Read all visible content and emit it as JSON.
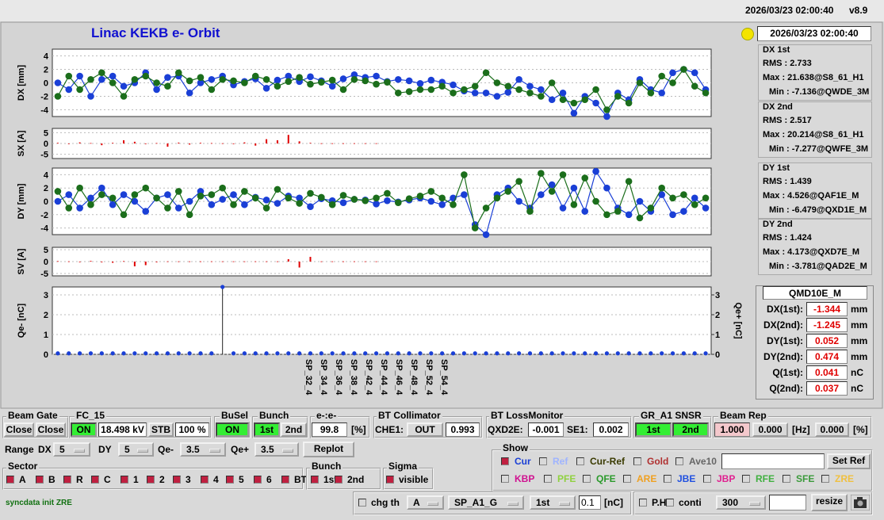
{
  "header": {
    "timestamp": "2026/03/23 02:00:40",
    "version": "v8.9"
  },
  "title": "Linac KEKB e- Orbit",
  "clock": "2026/03/23 02:00:40",
  "plots": [
    {
      "type": "line",
      "ylabel": "DX [mm]",
      "ylim": [
        -5,
        5
      ],
      "yticks": [
        4,
        2,
        0,
        -2,
        -4
      ],
      "series": [
        {
          "color": "#1a3fd6",
          "values": [
            0,
            -1,
            1,
            -2,
            0.5,
            1,
            -0.5,
            0,
            1.5,
            -1,
            0.8,
            1,
            -1.5,
            0,
            0.5,
            1,
            -0.3,
            0.2,
            0.6,
            -0.8,
            0.4,
            1,
            0.2,
            0.9,
            0.3,
            -0.5,
            0.6,
            1.2,
            0.8,
            1,
            0.2,
            0.5,
            0.3,
            -0.1,
            0.4,
            0.1,
            -0.3,
            -1.2,
            -1.5,
            -1.5,
            -2,
            -1.4,
            0.5,
            -0.5,
            -1,
            -2.5,
            -1.5,
            -4.5,
            -2,
            -3,
            -5,
            -1.5,
            -2.5,
            0.5,
            -1,
            -1.5,
            1.5,
            2,
            1.5,
            -1
          ]
        },
        {
          "color": "#1b6e1b",
          "values": [
            -2,
            1,
            -1,
            0.5,
            1.5,
            0,
            -2,
            0.5,
            1,
            0,
            -0.5,
            1.5,
            0.3,
            0.8,
            -1,
            0.5,
            0.3,
            0,
            1,
            0.5,
            -0.5,
            0.2,
            0.8,
            -0.2,
            0.1,
            0.4,
            -1,
            0.5,
            0.3,
            -0.2,
            0.1,
            -1.5,
            -1.3,
            -1,
            -1,
            -0.5,
            -1.5,
            -1,
            -0.5,
            1.5,
            0,
            -0.5,
            -1,
            -1.5,
            -2,
            0,
            -2.5,
            -3,
            -2.5,
            -1,
            -4,
            -2,
            -3,
            0,
            -1.5,
            1,
            0,
            2,
            -0.5,
            -1.5
          ]
        }
      ]
    },
    {
      "type": "bar",
      "ylabel": "SX [A]",
      "ylim": [
        -7,
        7
      ],
      "yticks": [
        5,
        0,
        -5
      ],
      "color": "#e00000",
      "values": [
        0.3,
        -0.2,
        0.5,
        0.2,
        -0.8,
        0.3,
        1.5,
        0.8,
        -0.3,
        0.2,
        -1.5,
        0.4,
        -0.5,
        0.3,
        0.2,
        0.1,
        -0.3,
        0.5,
        -1,
        2,
        1.5,
        4,
        1,
        0.3,
        0.1,
        0.1,
        0.1,
        0.1,
        0.1,
        0.1
      ]
    },
    {
      "type": "line",
      "ylabel": "DY [mm]",
      "ylim": [
        -5,
        5
      ],
      "yticks": [
        4,
        2,
        0,
        -2,
        -4
      ],
      "series": [
        {
          "color": "#1a3fd6",
          "values": [
            0,
            1,
            -1,
            0.5,
            2,
            -0.5,
            1,
            0,
            -1.5,
            0.5,
            1,
            -1,
            0,
            1.5,
            -0.5,
            0.3,
            1,
            -0.5,
            0.6,
            0.2,
            -0.3,
            0.8,
            0.5,
            -0.8,
            0.4,
            0.1,
            -0.2,
            0.3,
            0.2,
            -0.4,
            0.1,
            -0.1,
            0.2,
            0.5,
            0,
            -0.5,
            0.5,
            1,
            -3.5,
            -5,
            1,
            2,
            0,
            -1,
            1,
            2.5,
            -1,
            2,
            -1.5,
            4.5,
            2,
            -1,
            -2,
            0,
            -1.5,
            1,
            -2,
            -1.5,
            0.5,
            -1
          ]
        },
        {
          "color": "#1b6e1b",
          "values": [
            1.5,
            -1,
            2,
            -0.5,
            1,
            0.5,
            -2,
            1,
            2,
            0.5,
            -1,
            1.5,
            -2,
            0.8,
            1,
            2,
            -0.5,
            1.5,
            0.5,
            -1,
            1.8,
            0.5,
            -0.3,
            1.2,
            0.6,
            -0.5,
            0.9,
            0.3,
            0.1,
            0.5,
            1.2,
            -0.2,
            0.4,
            0.8,
            1.5,
            0.5,
            -0.5,
            4,
            -4,
            -1,
            0.5,
            1.5,
            3,
            -1.5,
            4.2,
            1.5,
            4,
            -0.5,
            3.5,
            0,
            -2,
            -1.5,
            3,
            -2.5,
            -1,
            2,
            0.5,
            1,
            -0.5,
            0.5
          ]
        }
      ]
    },
    {
      "type": "bar",
      "ylabel": "SV [A]",
      "ylim": [
        -6,
        6
      ],
      "yticks": [
        5,
        0,
        -5
      ],
      "color": "#e00000",
      "values": [
        0.2,
        0.1,
        -0.2,
        0.3,
        -0.3,
        -0.5,
        0.2,
        -2,
        -1.5,
        -0.3,
        0.1,
        0.1,
        0.1,
        0.1,
        0.1,
        0.1,
        0.1,
        0.1,
        0.1,
        0.1,
        0.1,
        1,
        -2.5,
        2,
        0.1,
        0.1,
        0.1,
        0.1,
        0.1,
        0.1
      ]
    },
    {
      "type": "scatter",
      "ylabel": "Qe- [nC]",
      "y2label": "Qe+ [nC]",
      "ylim": [
        0,
        3.4
      ],
      "yticks": [
        0,
        1,
        2,
        3
      ],
      "y2lim": [
        0,
        3.4
      ],
      "y2ticks": [
        0,
        1,
        2,
        3
      ],
      "color": "#1a3fd6",
      "values": [
        0.05,
        0.05,
        0.05,
        0.05,
        0.05,
        0.05,
        0.05,
        0.05,
        0.05,
        0.05,
        0.05,
        0.05,
        0.05,
        0.05,
        0.05,
        3.4,
        0.05,
        0.05,
        0.05,
        0.05,
        0.05,
        0.05,
        0.05,
        0.05,
        0.05,
        0.05,
        0.05,
        0.05,
        0.05,
        0.05,
        0.05,
        0.05,
        0.05,
        0.05,
        0.05,
        0.05,
        0.05,
        0.05,
        0.05,
        0.05,
        0.05,
        0.05,
        0.05,
        0.05,
        0.05,
        0.05,
        0.05,
        0.05,
        0.05,
        0.05,
        0.05,
        0.05,
        0.05,
        0.05,
        0.05,
        0.05,
        0.05,
        0.05,
        0.05,
        0.05
      ]
    }
  ],
  "element_labels": [
    "SP_32_4",
    "SP_34_4",
    "SP_36_4",
    "SP_38_4",
    "SP_42_4",
    "SP_44_4",
    "SP_46_4",
    "SP_48_4",
    "SP_52_4",
    "SP_54_4"
  ],
  "stats": [
    {
      "title": "DX 1st",
      "lines": [
        "RMS : 2.733",
        "Max : 21.638@S8_61_H1",
        "Min : -7.136@QWDE_3M"
      ]
    },
    {
      "title": "DX 2nd",
      "lines": [
        "RMS : 2.517",
        "Max : 20.214@S8_61_H1",
        "Min : -7.277@QWFE_3M"
      ]
    },
    {
      "title": "DY 1st",
      "lines": [
        "RMS : 1.439",
        "Max : 4.526@QAF1E_M",
        "Min : -6.479@QXD1E_M"
      ]
    },
    {
      "title": "DY 2nd",
      "lines": [
        "RMS : 1.424",
        "Max : 4.173@QXD7E_M",
        "Min : -3.781@QAD2E_M"
      ]
    }
  ],
  "monitor": {
    "title": "QMD10E_M",
    "rows": [
      {
        "label": "DX(1st):",
        "value": "-1.344",
        "unit": "mm"
      },
      {
        "label": "DX(2nd):",
        "value": "-1.245",
        "unit": "mm"
      },
      {
        "label": "DY(1st):",
        "value": "0.052",
        "unit": "mm"
      },
      {
        "label": "DY(2nd):",
        "value": "0.474",
        "unit": "mm"
      },
      {
        "label": "Q(1st):",
        "value": "0.041",
        "unit": "nC"
      },
      {
        "label": "Q(2nd):",
        "value": "0.037",
        "unit": "nC"
      }
    ]
  },
  "controls": {
    "beam_gate": {
      "label": "Beam Gate",
      "buttons": [
        "Close",
        "Close"
      ]
    },
    "fc": {
      "label": "FC_15",
      "state": "ON",
      "voltage": "18.498 kV",
      "stb": "STB",
      "percent": "100 %"
    },
    "busel": {
      "label": "BuSel",
      "state": "ON"
    },
    "bunch": {
      "label": "Bunch",
      "options": [
        "1st",
        "2nd"
      ]
    },
    "ratio": {
      "label": "e-:e-",
      "value": "99.8",
      "unit": "[%]"
    },
    "collimator": {
      "label": "BT Collimator",
      "name": "CHE1:",
      "state": "OUT",
      "value": "0.993"
    },
    "loss": {
      "label": "BT LossMonitor",
      "name1": "QXD2E:",
      "value1": "-0.001",
      "name2": "SE1:",
      "value2": "0.002"
    },
    "snsr": {
      "label": "GR_A1 SNSR",
      "options": [
        "1st",
        "2nd"
      ]
    },
    "rep": {
      "label": "Beam Rep",
      "value1": "1.000",
      "value2": "0.000",
      "unit1": "[Hz]",
      "value3": "0.000",
      "unit2": "[%]"
    },
    "range": {
      "label": "Range",
      "dx": "DX",
      "dx_value": "5",
      "dy": "DY",
      "dy_value": "5",
      "qe_minus": "Qe-",
      "qe_minus_value": "3.5",
      "qe_plus": "Qe+",
      "qe_plus_value": "3.5",
      "replot": "Replot"
    },
    "sector": {
      "label": "Sector",
      "items": [
        "A",
        "B",
        "R",
        "C",
        "1",
        "2",
        "3",
        "4",
        "5",
        "6",
        "BT"
      ]
    },
    "bunch_select": {
      "label": "Bunch",
      "items": [
        "1st",
        "2nd"
      ]
    },
    "sigma": {
      "label": "Sigma",
      "item": "visible"
    },
    "show": {
      "label": "Show",
      "set_ref": "Set Ref",
      "row1": [
        {
          "text": "Cur",
          "color": "#1a3fd6",
          "checked": true
        },
        {
          "text": "Ref",
          "color": "#9fb4ff",
          "checked": false
        },
        {
          "text": "Cur-Ref",
          "color": "#3a3a00",
          "checked": false
        },
        {
          "text": "Gold",
          "color": "#b03030",
          "checked": false
        },
        {
          "text": "Ave10",
          "color": "#666666",
          "checked": false
        }
      ],
      "row2": [
        {
          "text": "KBP",
          "color": "#d01090",
          "checked": false
        },
        {
          "text": "PFE",
          "color": "#8fd13f",
          "checked": false
        },
        {
          "text": "QFE",
          "color": "#2a9a2a",
          "checked": false
        },
        {
          "text": "ARE",
          "color": "#f0a020",
          "checked": false
        },
        {
          "text": "JBE",
          "color": "#2050e0",
          "checked": false
        },
        {
          "text": "JBP",
          "color": "#e02090",
          "checked": false
        },
        {
          "text": "RFE",
          "color": "#40b040",
          "checked": false
        },
        {
          "text": "SFE",
          "color": "#3a9a3a",
          "checked": false
        },
        {
          "text": "ZRE",
          "color": "#f0c040",
          "checked": false
        }
      ]
    },
    "status": "syncdata init ZRE",
    "bottom": {
      "chg_th": "chg th",
      "source": "A",
      "signal": "SP_A1_G",
      "bunch": "1st",
      "threshold": "0.1",
      "unit": "[nC]",
      "ph": "P.H",
      "conti": "conti",
      "count": "300",
      "resize": "resize"
    }
  }
}
